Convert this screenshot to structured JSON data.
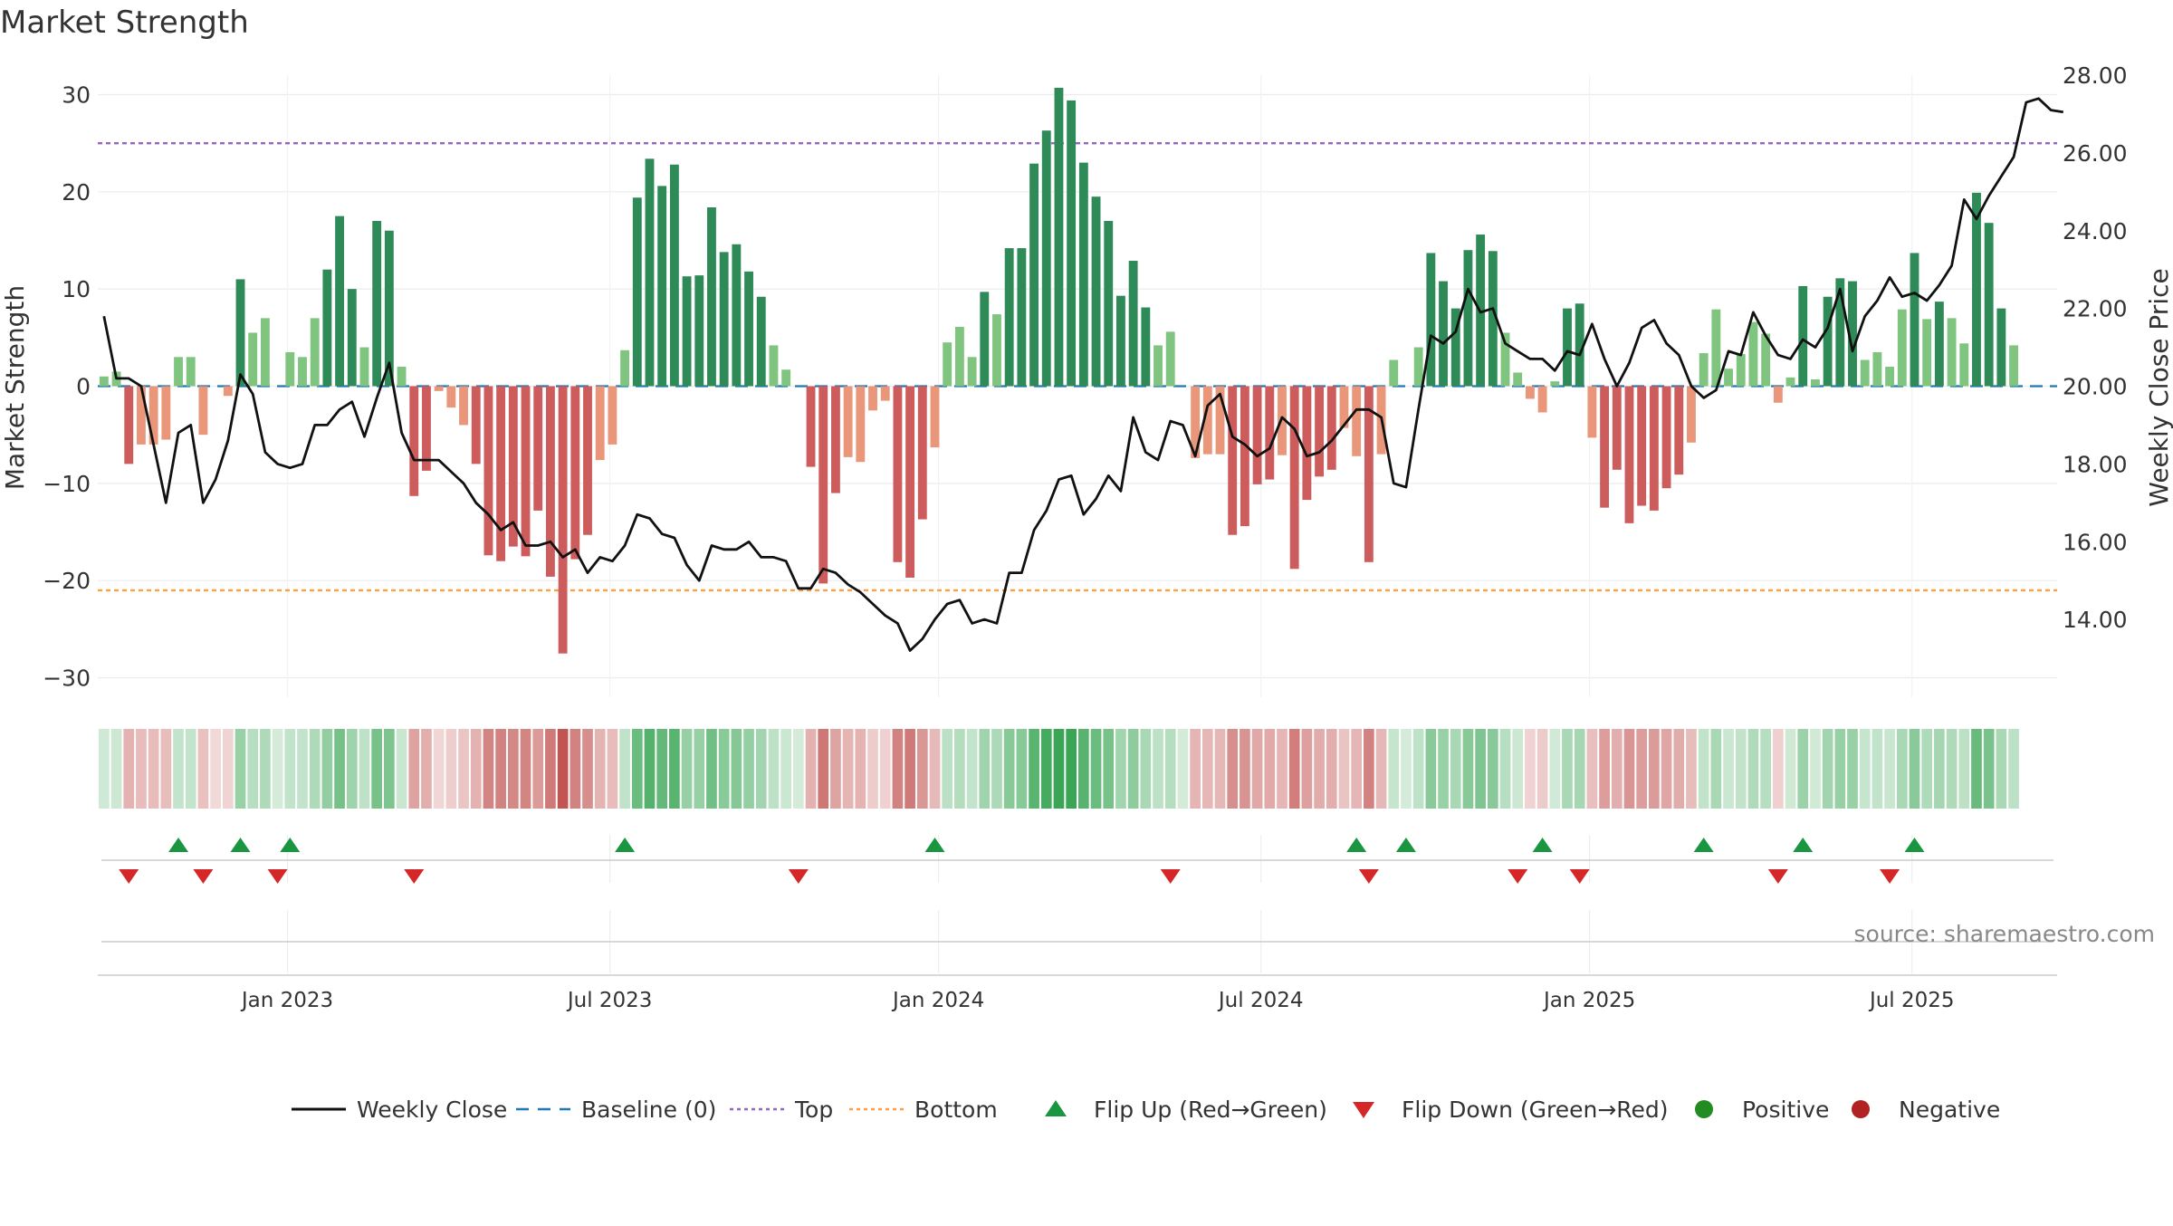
{
  "chart_data": {
    "type": "bar",
    "title": "Market Strength",
    "ylabel": "Market Strength",
    "y2label": "Weekly Close Price",
    "ylim": [
      -32,
      32
    ],
    "y2lim": [
      12.0,
      28.0
    ],
    "yticks": [
      30,
      20,
      10,
      0,
      -10,
      -20,
      -30
    ],
    "yticklabels": [
      "30",
      "20",
      "10",
      "0",
      "−10",
      "−20",
      "−30"
    ],
    "y2ticks": [
      28,
      26,
      24,
      22,
      20,
      18,
      16,
      14
    ],
    "y2ticklabels": [
      "28.00",
      "26.00",
      "24.00",
      "22.00",
      "20.00",
      "18.00",
      "16.00",
      "14.00"
    ],
    "xlim": [
      0,
      158
    ],
    "xticks": [
      {
        "label": "Jan 2023",
        "pos": 15.3
      },
      {
        "label": "Jul 2023",
        "pos": 41.3
      },
      {
        "label": "Jan 2024",
        "pos": 67.8
      },
      {
        "label": "Jul 2024",
        "pos": 93.8
      },
      {
        "label": "Jan 2025",
        "pos": 120.3
      },
      {
        "label": "Jul 2025",
        "pos": 146.3
      }
    ],
    "top_level": 25,
    "bottom_level": -21,
    "baseline": 0,
    "strength": [
      1,
      1.5,
      -8,
      -6,
      -6,
      -5.5,
      3,
      3,
      -5,
      0,
      -1,
      11,
      5.5,
      7,
      0,
      3.5,
      3,
      7,
      12,
      17.5,
      10,
      4,
      17,
      16,
      2,
      -11.3,
      -8.7,
      -0.5,
      -2.2,
      -4,
      -8,
      -17.4,
      -18,
      -16.5,
      -17.5,
      -12.8,
      -19.6,
      -27.5,
      -17.8,
      -15.3,
      -7.6,
      -6,
      3.7,
      19.4,
      23.4,
      20.6,
      22.8,
      11.3,
      11.4,
      18.4,
      13.8,
      14.6,
      11.8,
      9.2,
      4.2,
      1.7,
      0,
      -8.3,
      -20.3,
      -11,
      -7.3,
      -7.8,
      -2.5,
      -1.5,
      -18.1,
      -19.7,
      -13.7,
      -6.3,
      4.5,
      6.1,
      3,
      9.7,
      7.4,
      14.2,
      14.2,
      22.9,
      26.3,
      30.7,
      29.4,
      23,
      19.5,
      17,
      9.3,
      12.9,
      8.1,
      4.2,
      5.6,
      0,
      -7.4,
      -7,
      -7,
      -15.3,
      -14.4,
      -10.1,
      -9.6,
      -7.1,
      -18.8,
      -11.7,
      -9.3,
      -8.6,
      -4.3,
      -7.2,
      -18.1,
      -7,
      2.7,
      0,
      4,
      13.7,
      10.8,
      8,
      14,
      15.6,
      13.9,
      5.5,
      1.4,
      -1.3,
      -2.7,
      0.5,
      8,
      8.5,
      -5.3,
      -12.5,
      -8.6,
      -14.1,
      -12.3,
      -12.8,
      -10.5,
      -9.1,
      -5.8,
      3.4,
      7.9,
      1.8,
      3.3,
      6.6,
      5.4,
      -1.7,
      0.9,
      10.3,
      0.7,
      9.2,
      11.1,
      10.8,
      2.7,
      3.5,
      2,
      7.9,
      13.7,
      6.9,
      8.7,
      7,
      4.4,
      19.9,
      16.8,
      8,
      4.2
    ],
    "close": [
      21.8,
      20.2,
      20.2,
      20.0,
      18.5,
      17.0,
      18.8,
      19.0,
      17.0,
      17.6,
      18.6,
      20.3,
      19.8,
      18.3,
      18.0,
      17.9,
      18.0,
      19.0,
      19.0,
      19.4,
      19.6,
      18.7,
      19.7,
      20.6,
      18.8,
      18.1,
      18.1,
      18.1,
      17.8,
      17.5,
      17.0,
      16.7,
      16.3,
      16.5,
      15.9,
      15.9,
      16.0,
      15.6,
      15.8,
      15.2,
      15.6,
      15.5,
      15.9,
      16.7,
      16.6,
      16.2,
      16.1,
      15.4,
      15.0,
      15.9,
      15.8,
      15.8,
      16.0,
      15.6,
      15.6,
      15.5,
      14.8,
      14.8,
      15.3,
      15.2,
      14.9,
      14.7,
      14.4,
      14.1,
      13.9,
      13.2,
      13.5,
      14.0,
      14.4,
      14.5,
      13.9,
      14.0,
      13.9,
      15.2,
      15.2,
      16.3,
      16.8,
      17.6,
      17.7,
      16.7,
      17.1,
      17.7,
      17.3,
      19.2,
      18.3,
      18.1,
      19.1,
      19.0,
      18.2,
      19.5,
      19.8,
      18.7,
      18.5,
      18.2,
      18.4,
      19.2,
      18.9,
      18.2,
      18.3,
      18.6,
      19.0,
      19.4,
      19.4,
      19.2,
      17.5,
      17.4,
      19.4,
      21.3,
      21.1,
      21.4,
      22.5,
      21.9,
      22.0,
      21.1,
      20.9,
      20.7,
      20.7,
      20.4,
      20.9,
      20.8,
      21.6,
      20.7,
      20.0,
      20.6,
      21.5,
      21.7,
      21.1,
      20.8,
      20.0,
      19.7,
      19.9,
      20.9,
      20.8,
      21.9,
      21.3,
      20.8,
      20.7,
      21.2,
      21.0,
      21.5,
      22.5,
      20.9,
      21.8,
      22.2,
      22.8,
      22.3,
      22.4,
      22.2,
      22.6,
      23.1,
      24.8,
      24.3,
      24.9,
      25.4,
      25.9,
      27.3,
      27.4,
      27.1,
      27.05
    ],
    "flip_up": [
      6,
      11,
      15,
      42,
      67,
      101,
      105,
      116,
      129,
      137,
      146
    ],
    "flip_down": [
      2,
      8,
      14,
      25,
      56,
      86,
      102,
      114,
      119,
      135,
      144
    ],
    "legend": [
      {
        "label": "Weekly Close",
        "kind": "line"
      },
      {
        "label": "Baseline (0)",
        "kind": "baseline"
      },
      {
        "label": "Top",
        "kind": "top"
      },
      {
        "label": "Bottom",
        "kind": "bottom"
      },
      {
        "label": "Flip Up (Red→Green)",
        "kind": "up"
      },
      {
        "label": "Flip Down (Green→Red)",
        "kind": "down"
      },
      {
        "label": "Positive",
        "kind": "pos"
      },
      {
        "label": "Negative",
        "kind": "neg"
      }
    ],
    "legend_position": "bottom",
    "source": "source: sharemaestro.com"
  },
  "colors": {
    "pos_strong": "#2e8b57",
    "pos_light": "#7fc47f",
    "neg_strong": "#cd5c5c",
    "neg_light": "#e9967a",
    "close_line": "#111111",
    "baseline": "#1f77b4",
    "top": "#9467bd",
    "bottom": "#ff9f40",
    "flip_up": "#1a9641",
    "flip_down": "#d62728",
    "positive_dot": "#228b22",
    "negative_dot": "#b22222"
  }
}
